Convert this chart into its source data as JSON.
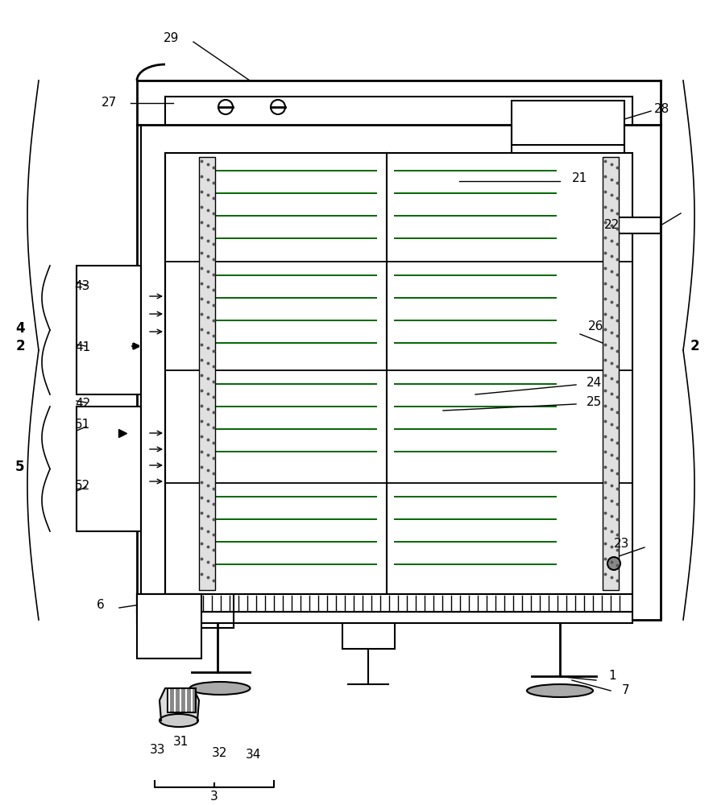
{
  "bg_color": "#ffffff",
  "line_color": "#000000",
  "gray_color": "#888888",
  "light_gray": "#cccccc",
  "dark_gray": "#555555",
  "green_color": "#006600",
  "coil_color": "#006600"
}
